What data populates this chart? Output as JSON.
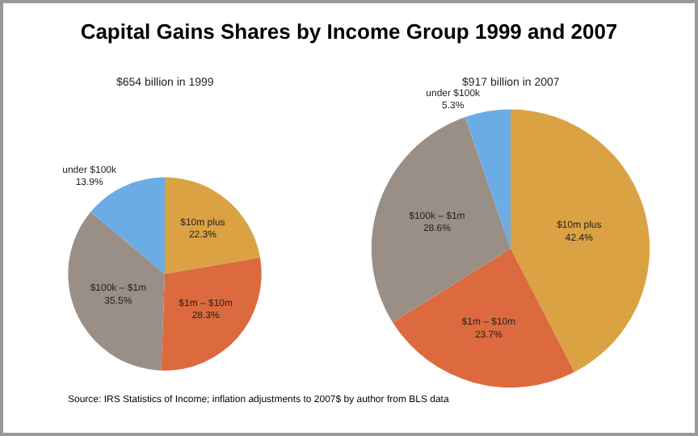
{
  "chart_data": [
    {
      "type": "pie",
      "title": "Capital Gains Shares by Income Group 1999 and 2007",
      "subtitle": "$654 billion in 1999",
      "categories": [
        "$10m plus",
        "$1m – $10m",
        "$100k – $1m",
        "under $100k"
      ],
      "values": [
        22.3,
        28.3,
        35.5,
        13.9
      ],
      "value_labels": [
        "22.3%",
        "28.3%",
        "35.5%",
        "13.9%"
      ],
      "colors": [
        "#dba243",
        "#dd6a3e",
        "#9a8f86",
        "#6cace4"
      ],
      "annotations": [
        "Source: IRS Statistics of Income; inflation adjustments to 2007$ by author from BLS data"
      ]
    },
    {
      "type": "pie",
      "subtitle": "$917 billion in 2007",
      "categories": [
        "$10m plus",
        "$1m – $10m",
        "$100k – $1m",
        "under $100k"
      ],
      "values": [
        42.4,
        23.7,
        28.6,
        5.3
      ],
      "value_labels": [
        "42.4%",
        "23.7%",
        "28.6%",
        "5.3%"
      ],
      "colors": [
        "#dba243",
        "#dd6a3e",
        "#9a8f86",
        "#6cace4"
      ]
    }
  ]
}
